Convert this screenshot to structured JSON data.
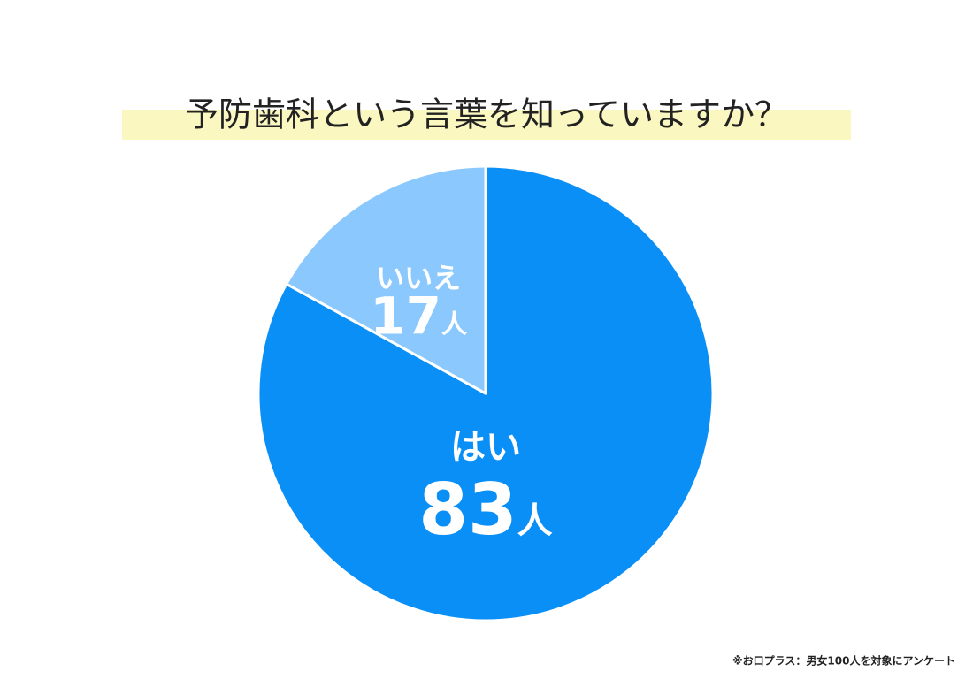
{
  "chart_data": {
    "type": "pie",
    "title": "予防歯科という言葉を知っていますか？",
    "categories": [
      "はい",
      "いいえ"
    ],
    "values": [
      83,
      17
    ],
    "value_labels": [
      "83人",
      "17人"
    ],
    "colors": [
      "#0a8ff7",
      "#8ac8fd"
    ],
    "note": "※お口プラス：男女100人を対象にアンケート"
  }
}
